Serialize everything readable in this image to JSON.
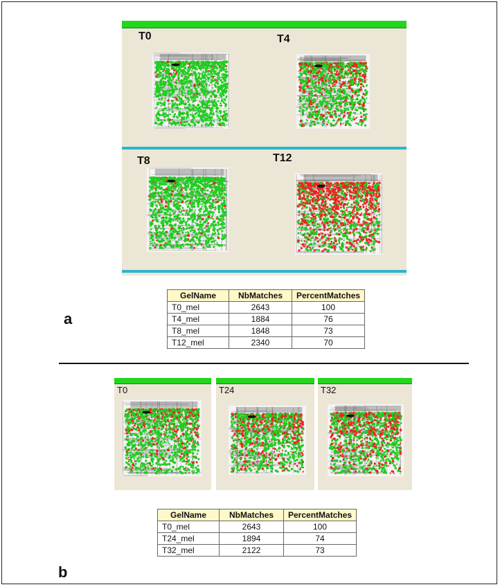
{
  "panel_a": {
    "letter": "a",
    "timepoints": [
      "T0",
      "T4",
      "T8",
      "T12"
    ],
    "table": {
      "headers": [
        "GelName",
        "NbMatches",
        "PercentMatches"
      ],
      "rows": [
        [
          "T0_mel",
          "2643",
          "100"
        ],
        [
          "T4_mel",
          "1884",
          "76"
        ],
        [
          "T8_mel",
          "1848",
          "73"
        ],
        [
          "T12_mel",
          "2340",
          "70"
        ]
      ]
    }
  },
  "panel_b": {
    "letter": "b",
    "timepoints": [
      "T0",
      "T24",
      "T32"
    ],
    "table": {
      "headers": [
        "GelName",
        "NbMatches",
        "PercentMatches"
      ],
      "rows": [
        [
          "T0_mel",
          "2643",
          "100"
        ],
        [
          "T24_mel",
          "1894",
          "74"
        ],
        [
          "T32_mel",
          "2122",
          "73"
        ]
      ]
    }
  },
  "colors": {
    "panel_bg": "#ece6d6",
    "title_bar": "#22d61e",
    "separator": "#2ab7c9",
    "matched_spot": "#22cc22",
    "unmatched_spot": "#ee2222",
    "table_header": "#fff8c8"
  }
}
